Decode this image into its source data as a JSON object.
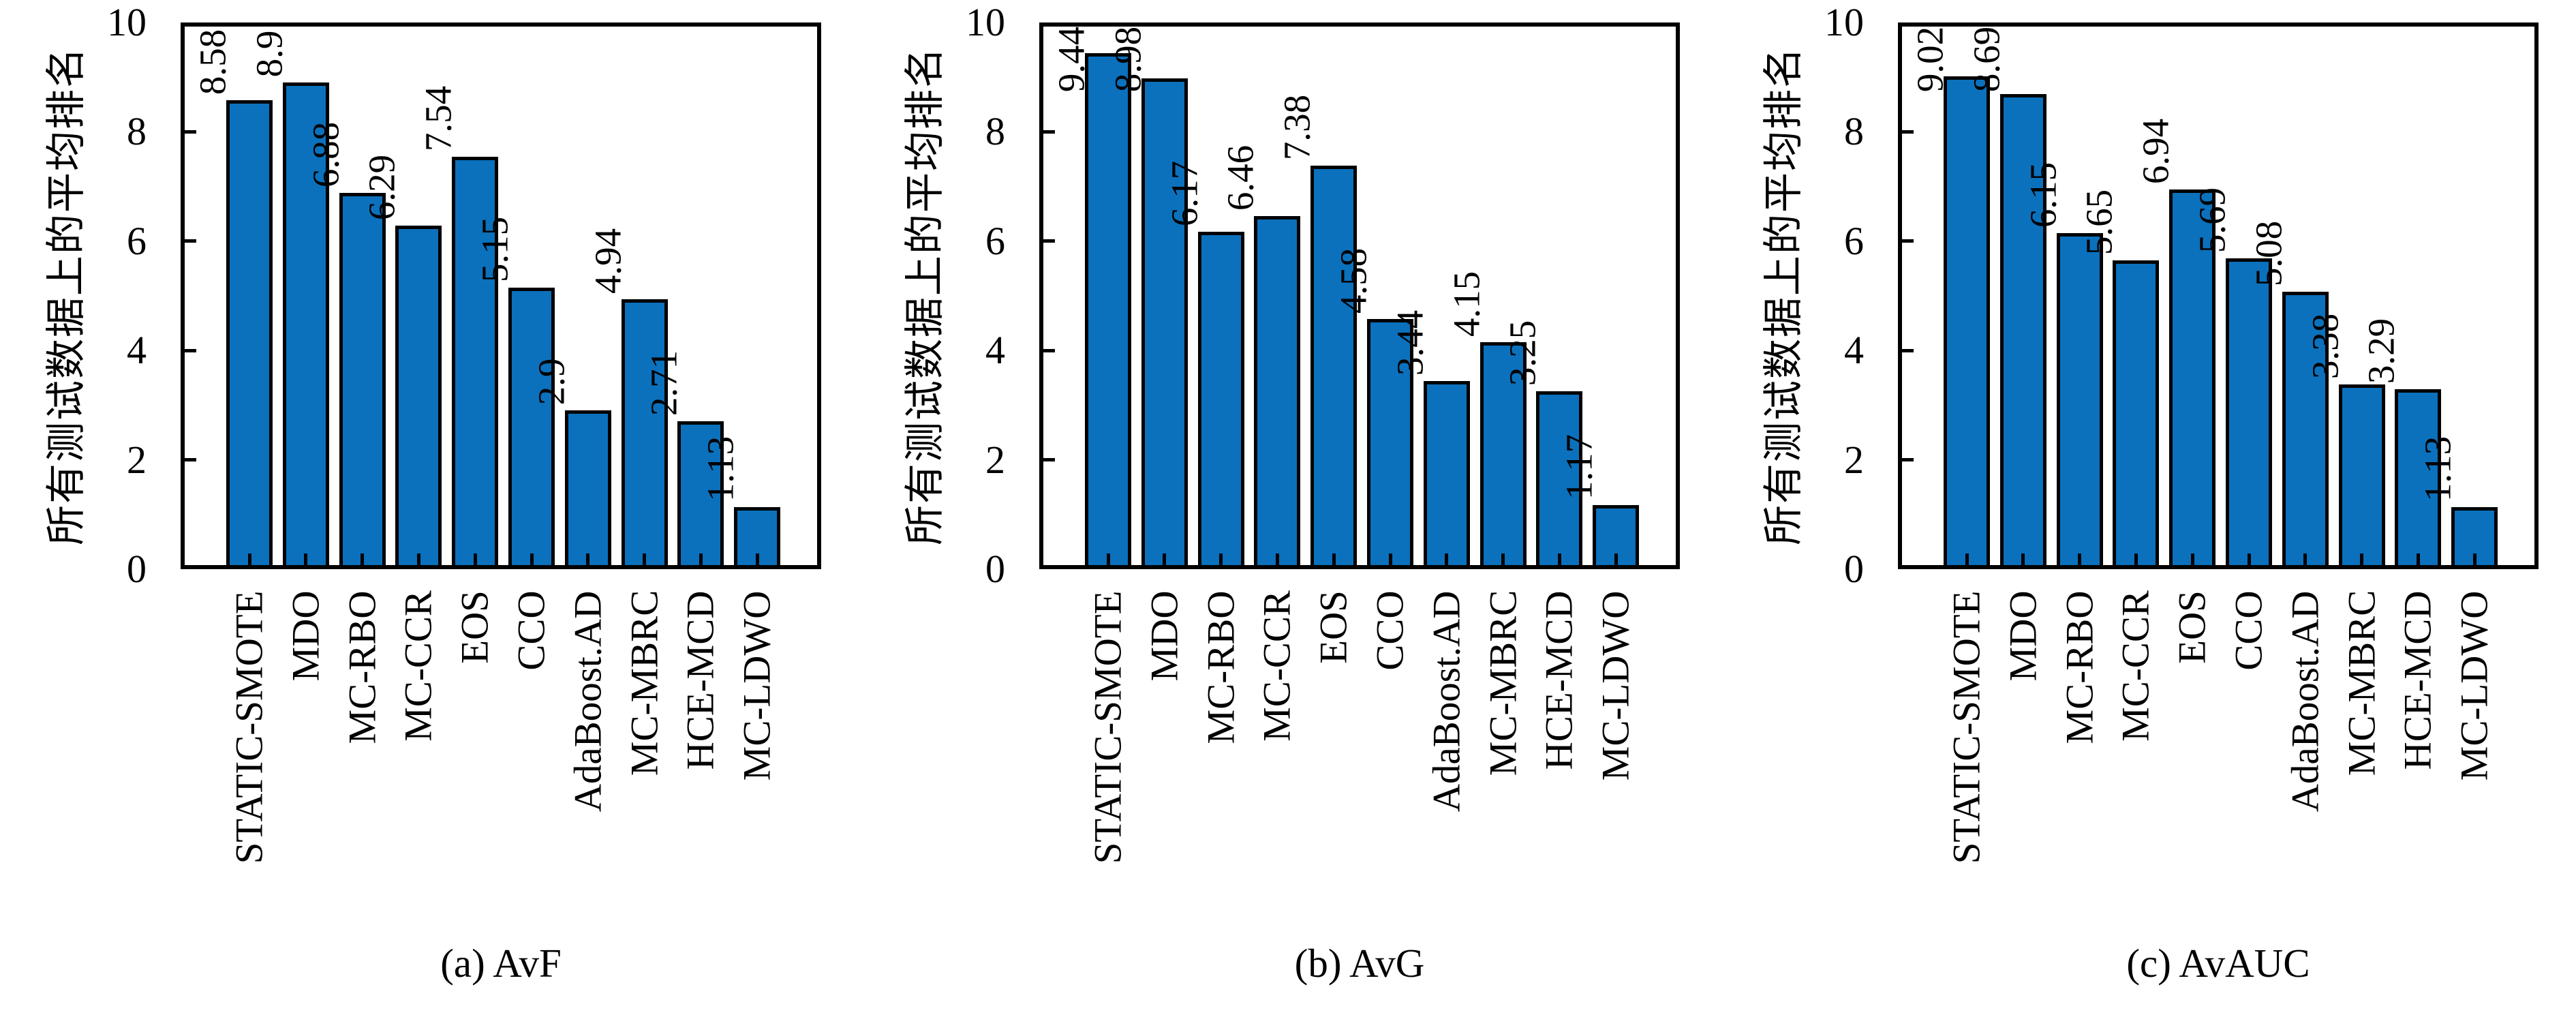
{
  "figure": {
    "background": "#ffffff",
    "bar_fill": "#0B71BD",
    "bar_edge": "#000000",
    "axis_color": "#000000",
    "y_axis_label": "所有测试数据上的平均排名",
    "y_tick_labels": [
      "0",
      "2",
      "4",
      "6",
      "8",
      "10"
    ]
  },
  "chart_data": [
    {
      "type": "bar",
      "title": "(a) AvF",
      "ylabel": "所有测试数据上的平均排名",
      "xlabel": "",
      "ylim": [
        0,
        10
      ],
      "grid": false,
      "legend": null,
      "categories": [
        "STATIC-SMOTE",
        "MDO",
        "MC-RBO",
        "MC-CCR",
        "EOS",
        "CCO",
        "AdaBoost.AD",
        "MC-MBRC",
        "HCE-MCD",
        "MC-LDWO"
      ],
      "values": [
        8.58,
        8.9,
        6.88,
        6.29,
        7.54,
        5.15,
        2.9,
        4.94,
        2.71,
        1.13
      ],
      "bar_labels": [
        "8.58",
        "8.9",
        "6.88",
        "6.29",
        "7.54",
        "5.15",
        "2.9",
        "4.94",
        "2.71",
        "1.13"
      ]
    },
    {
      "type": "bar",
      "title": "(b) AvG",
      "ylabel": "所有测试数据上的平均排名",
      "xlabel": "",
      "ylim": [
        0,
        10
      ],
      "grid": false,
      "legend": null,
      "categories": [
        "STATIC-SMOTE",
        "MDO",
        "MC-RBO",
        "MC-CCR",
        "EOS",
        "CCO",
        "AdaBoost.AD",
        "MC-MBRC",
        "HCE-MCD",
        "MC-LDWO"
      ],
      "values": [
        9.44,
        8.98,
        6.17,
        6.46,
        7.38,
        4.58,
        3.44,
        4.15,
        3.25,
        1.17
      ],
      "bar_labels": [
        "9.44",
        "8.98",
        "6.17",
        "6.46",
        "7.38",
        "4.58",
        "3.44",
        "4.15",
        "3.25",
        "1.17"
      ]
    },
    {
      "type": "bar",
      "title": "(c) AvAUC",
      "ylabel": "所有测试数据上的平均排名",
      "xlabel": "",
      "ylim": [
        0,
        10
      ],
      "grid": false,
      "legend": null,
      "categories": [
        "STATIC-SMOTE",
        "MDO",
        "MC-RBO",
        "MC-CCR",
        "EOS",
        "CCO",
        "AdaBoost.AD",
        "MC-MBRC",
        "HCE-MCD",
        "MC-LDWO"
      ],
      "values": [
        9.02,
        8.69,
        6.15,
        5.65,
        6.94,
        5.69,
        5.08,
        3.38,
        3.29,
        1.13
      ],
      "bar_labels": [
        "9.02",
        "8.69",
        "6.15",
        "5.65",
        "6.94",
        "5.69",
        "5.08",
        "3.38",
        "3.29",
        "1.13"
      ]
    }
  ]
}
